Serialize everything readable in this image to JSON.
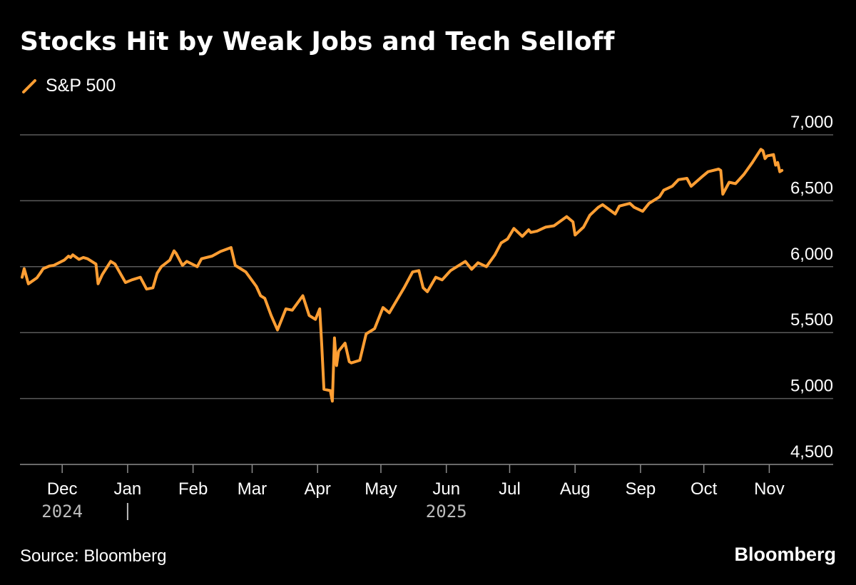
{
  "title": "Stocks Hit by Weak Jobs and Tech Selloff",
  "source": "Source: Bloomberg",
  "brand": "Bloomberg",
  "colors": {
    "background": "#000000",
    "series": "#FF9E33",
    "grid": "#5a5a5a",
    "axis": "#8c8c8c"
  },
  "chart_data": {
    "type": "line",
    "title": "Stocks Hit by Weak Jobs and Tech Selloff",
    "xlabel": "",
    "ylabel": "",
    "ylim": [
      4500,
      7000
    ],
    "xlim": [
      "2024-11-11",
      "2025-11-11"
    ],
    "grid": true,
    "legend_placement": "top-left",
    "y_ticks": [
      {
        "value": 7000,
        "label": "7,000"
      },
      {
        "value": 6500,
        "label": "6,500"
      },
      {
        "value": 6000,
        "label": "6,000"
      },
      {
        "value": 5500,
        "label": "5,500"
      },
      {
        "value": 5000,
        "label": "5,000"
      },
      {
        "value": 4500,
        "label": "4,500"
      }
    ],
    "x_ticks": [
      {
        "date": "2024-12-01",
        "label": "Dec"
      },
      {
        "date": "2025-01-01",
        "label": "Jan"
      },
      {
        "date": "2025-02-01",
        "label": "Feb"
      },
      {
        "date": "2025-03-01",
        "label": "Mar"
      },
      {
        "date": "2025-04-01",
        "label": "Apr"
      },
      {
        "date": "2025-05-01",
        "label": "May"
      },
      {
        "date": "2025-06-01",
        "label": "Jun"
      },
      {
        "date": "2025-07-01",
        "label": "Jul"
      },
      {
        "date": "2025-08-01",
        "label": "Aug"
      },
      {
        "date": "2025-09-01",
        "label": "Sep"
      },
      {
        "date": "2025-10-01",
        "label": "Oct"
      },
      {
        "date": "2025-11-01",
        "label": "Nov"
      }
    ],
    "year_labels": [
      {
        "date": "2024-12-01",
        "label": "2024"
      },
      {
        "date": "2025-06-01",
        "label": "2025"
      }
    ],
    "year_divider_date": "2025-01-01",
    "series": [
      {
        "name": "S&P 500",
        "color": "#FF9E33",
        "x": [
          "2024-11-12",
          "2024-11-13",
          "2024-11-15",
          "2024-11-19",
          "2024-11-21",
          "2024-11-22",
          "2024-11-25",
          "2024-11-27",
          "2024-12-02",
          "2024-12-04",
          "2024-12-05",
          "2024-12-06",
          "2024-12-09",
          "2024-12-11",
          "2024-12-13",
          "2024-12-16",
          "2024-12-17",
          "2024-12-18",
          "2024-12-20",
          "2024-12-24",
          "2024-12-26",
          "2024-12-31",
          "2025-01-03",
          "2025-01-07",
          "2025-01-10",
          "2025-01-13",
          "2025-01-15",
          "2025-01-17",
          "2025-01-21",
          "2025-01-23",
          "2025-01-24",
          "2025-01-27",
          "2025-01-29",
          "2025-02-03",
          "2025-02-05",
          "2025-02-10",
          "2025-02-14",
          "2025-02-19",
          "2025-02-21",
          "2025-02-24",
          "2025-02-26",
          "2025-03-03",
          "2025-03-05",
          "2025-03-07",
          "2025-03-10",
          "2025-03-13",
          "2025-03-17",
          "2025-03-20",
          "2025-03-25",
          "2025-03-28",
          "2025-03-31",
          "2025-04-02",
          "2025-04-03",
          "2025-04-04",
          "2025-04-07",
          "2025-04-08",
          "2025-04-09",
          "2025-04-10",
          "2025-04-11",
          "2025-04-14",
          "2025-04-16",
          "2025-04-17",
          "2025-04-21",
          "2025-04-24",
          "2025-04-28",
          "2025-05-02",
          "2025-05-05",
          "2025-05-12",
          "2025-05-16",
          "2025-05-19",
          "2025-05-21",
          "2025-05-23",
          "2025-05-27",
          "2025-05-30",
          "2025-06-03",
          "2025-06-06",
          "2025-06-10",
          "2025-06-13",
          "2025-06-16",
          "2025-06-20",
          "2025-06-24",
          "2025-06-27",
          "2025-06-30",
          "2025-07-03",
          "2025-07-07",
          "2025-07-10",
          "2025-07-11",
          "2025-07-14",
          "2025-07-18",
          "2025-07-22",
          "2025-07-28",
          "2025-07-31",
          "2025-08-01",
          "2025-08-05",
          "2025-08-08",
          "2025-08-12",
          "2025-08-14",
          "2025-08-20",
          "2025-08-22",
          "2025-08-27",
          "2025-08-29",
          "2025-09-02",
          "2025-09-05",
          "2025-09-10",
          "2025-09-12",
          "2025-09-16",
          "2025-09-19",
          "2025-09-23",
          "2025-09-25",
          "2025-09-30",
          "2025-10-03",
          "2025-10-08",
          "2025-10-09",
          "2025-10-10",
          "2025-10-13",
          "2025-10-16",
          "2025-10-20",
          "2025-10-24",
          "2025-10-28",
          "2025-10-29",
          "2025-10-30",
          "2025-10-31",
          "2025-11-03",
          "2025-11-04",
          "2025-11-05",
          "2025-11-06",
          "2025-11-07"
        ],
        "values": [
          5920,
          5985,
          5870,
          5915,
          5960,
          5985,
          6005,
          6010,
          6050,
          6080,
          6070,
          6090,
          6055,
          6070,
          6060,
          6030,
          6020,
          5870,
          5940,
          6040,
          6020,
          5880,
          5900,
          5920,
          5830,
          5840,
          5950,
          6000,
          6050,
          6120,
          6100,
          6010,
          6040,
          6000,
          6060,
          6080,
          6115,
          6145,
          6010,
          5980,
          5960,
          5850,
          5780,
          5760,
          5630,
          5520,
          5680,
          5670,
          5780,
          5630,
          5600,
          5680,
          5400,
          5070,
          5060,
          4980,
          5460,
          5250,
          5360,
          5420,
          5280,
          5270,
          5290,
          5490,
          5530,
          5690,
          5650,
          5840,
          5960,
          5970,
          5840,
          5810,
          5920,
          5900,
          5970,
          6000,
          6040,
          5980,
          6030,
          6000,
          6090,
          6180,
          6210,
          6290,
          6230,
          6280,
          6260,
          6270,
          6300,
          6310,
          6380,
          6340,
          6240,
          6300,
          6390,
          6450,
          6470,
          6400,
          6460,
          6480,
          6450,
          6420,
          6480,
          6530,
          6580,
          6610,
          6660,
          6670,
          6610,
          6680,
          6720,
          6740,
          6730,
          6550,
          6640,
          6630,
          6700,
          6790,
          6890,
          6880,
          6820,
          6840,
          6850,
          6770,
          6790,
          6720,
          6730
        ]
      }
    ]
  }
}
